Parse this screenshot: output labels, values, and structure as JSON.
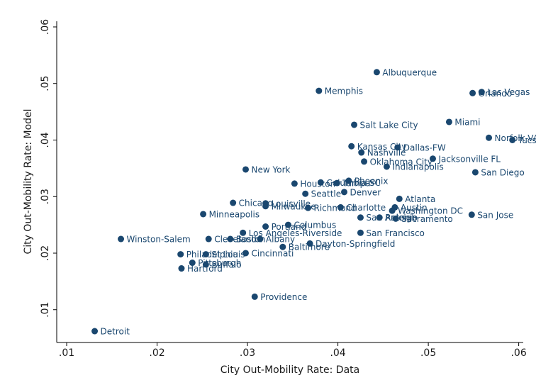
{
  "chart_data": {
    "type": "scatter",
    "x_label": "City Out-Mobility Rate: Data",
    "y_label": "City Out-Mobility Rate: Model",
    "color": "#1a476f",
    "xlim": [
      0.0089,
      0.0605
    ],
    "ylim": [
      0.0042,
      0.061
    ],
    "xticks": [
      {
        "value": 0.01,
        "label": ".01"
      },
      {
        "value": 0.02,
        "label": ".02"
      },
      {
        "value": 0.03,
        "label": ".03"
      },
      {
        "value": 0.04,
        "label": ".04"
      },
      {
        "value": 0.05,
        "label": ".05"
      },
      {
        "value": 0.06,
        "label": ".06"
      }
    ],
    "yticks": [
      {
        "value": 0.01,
        "label": ".01"
      },
      {
        "value": 0.02,
        "label": ".02"
      },
      {
        "value": 0.03,
        "label": ".03"
      },
      {
        "value": 0.04,
        "label": ".04"
      },
      {
        "value": 0.05,
        "label": ".05"
      },
      {
        "value": 0.06,
        "label": ".06"
      }
    ],
    "labels": [
      "Albuquerque",
      "Memphis",
      "Las Vegas",
      "Orlando",
      "Miami",
      "Salt Lake City",
      "Norfolk-VA",
      "Tucson",
      "Kansas City",
      "Dallas-FW",
      "Nashville",
      "Jacksonville FL",
      "Oklahoma City",
      "Indianapolis",
      "New York",
      "San Diego",
      "Houston",
      "Columbia SC",
      "Tampa",
      "Phoenix",
      "Seattle",
      "Denver",
      "Atlanta",
      "Chicago",
      "Louisville",
      "Milwaukee",
      "Richmond",
      "Charlotte",
      "Austin",
      "Washington DC",
      "Minneapolis",
      "San Jose",
      "San Antonio",
      "Raleigh",
      "Sacramento",
      "Portland",
      "Columbus",
      "Los Angeles-Riverside",
      "San Francisco",
      "Winston-Salem",
      "Cleveland",
      "Boston",
      "Albany",
      "Dayton-Springfield",
      "Baltimore",
      "Philadelphia",
      "St Louis",
      "Cincinnati",
      "Pittsburgh",
      "Buffalo",
      "Hartford",
      "Providence",
      "Detroit"
    ],
    "x": [
      0.0443,
      0.0379,
      0.0559,
      0.0549,
      0.0523,
      0.0418,
      0.0567,
      0.0593,
      0.0415,
      0.0466,
      0.0426,
      0.0505,
      0.0429,
      0.0454,
      0.0298,
      0.0552,
      0.0352,
      0.0381,
      0.0399,
      0.0412,
      0.0364,
      0.0407,
      0.0468,
      0.0284,
      0.032,
      0.032,
      0.0367,
      0.0403,
      0.0463,
      0.046,
      0.0251,
      0.0548,
      0.0425,
      0.0446,
      0.0464,
      0.032,
      0.0345,
      0.0295,
      0.0425,
      0.016,
      0.0257,
      0.0281,
      0.0314,
      0.0369,
      0.0339,
      0.0226,
      0.0254,
      0.0298,
      0.0239,
      0.0254,
      0.0227,
      0.0308,
      0.0131
    ],
    "y": [
      0.052,
      0.0487,
      0.0485,
      0.0483,
      0.0432,
      0.0427,
      0.0404,
      0.04,
      0.0389,
      0.0387,
      0.0378,
      0.0367,
      0.0362,
      0.0353,
      0.0348,
      0.0343,
      0.0323,
      0.0325,
      0.0324,
      0.0328,
      0.0305,
      0.0308,
      0.0296,
      0.0289,
      0.0288,
      0.0283,
      0.028,
      0.0281,
      0.0281,
      0.0275,
      0.0269,
      0.0268,
      0.0263,
      0.0263,
      0.0261,
      0.0247,
      0.025,
      0.0236,
      0.0236,
      0.0225,
      0.0225,
      0.0225,
      0.0225,
      0.0217,
      0.0211,
      0.0198,
      0.0198,
      0.02,
      0.0183,
      0.018,
      0.0173,
      0.0123,
      0.0062
    ]
  }
}
